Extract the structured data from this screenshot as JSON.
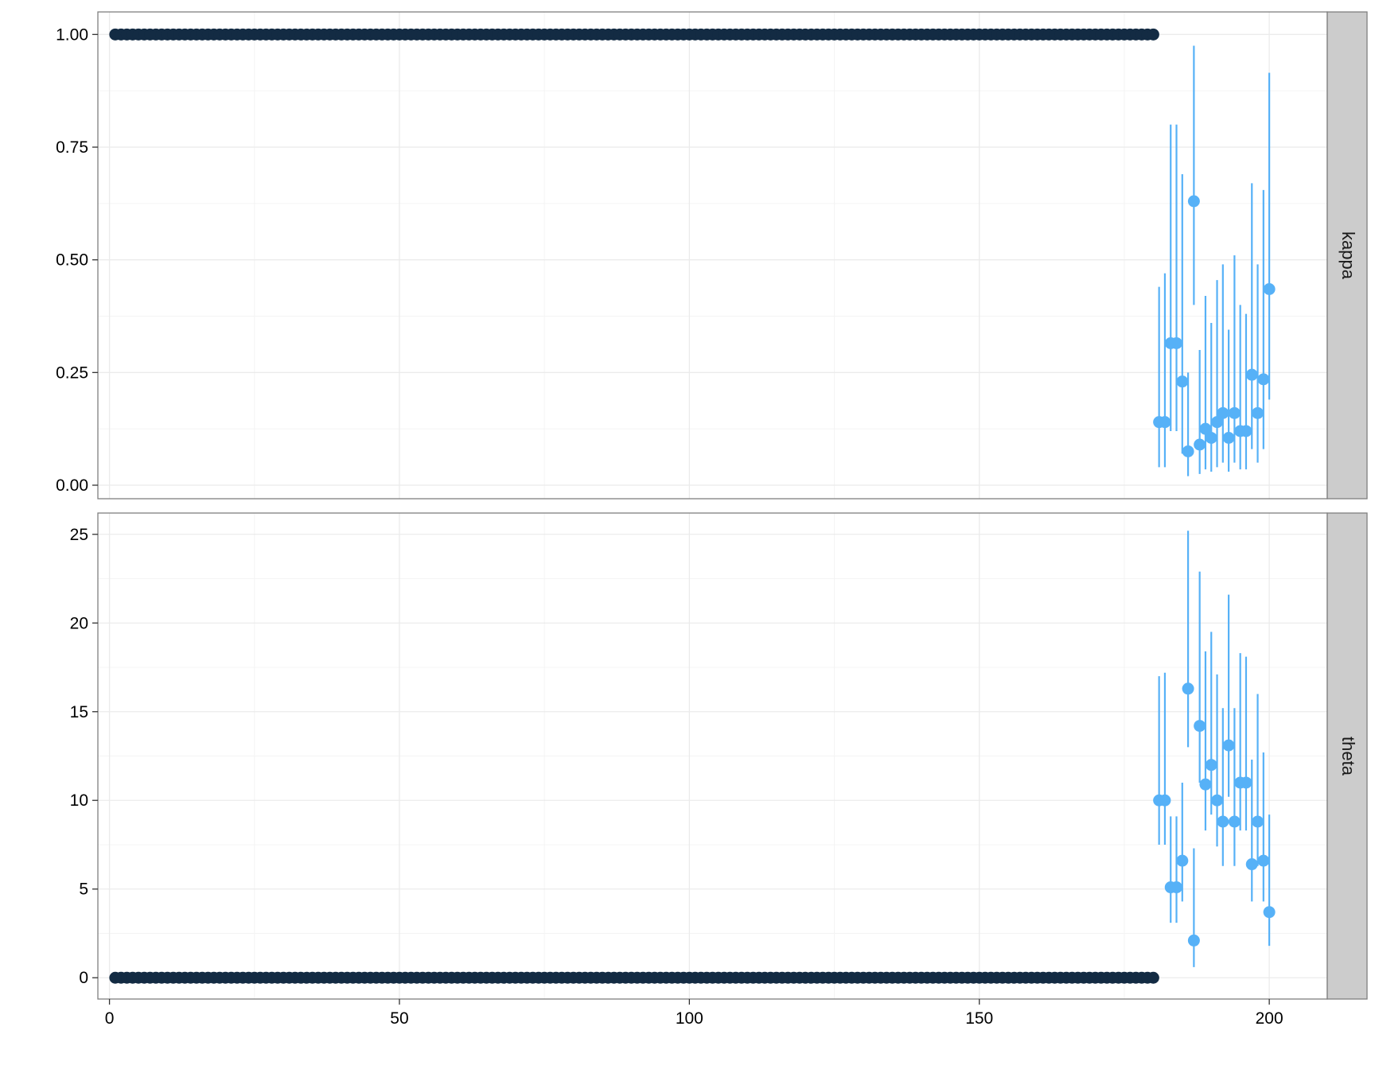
{
  "chart_data": {
    "type": "scatter",
    "title": "",
    "xlabel": "",
    "ylabel": "",
    "grid": true,
    "legend": "none",
    "x_axis": {
      "range": [
        -2,
        210
      ],
      "ticks": [
        0,
        50,
        100,
        150,
        200
      ],
      "tick_labels": [
        "0",
        "50",
        "100",
        "150",
        "200"
      ]
    },
    "colors": {
      "fixed_points": "#132B43",
      "estimated_points": "#56B1F7",
      "strip_fill": "#CCCCCC",
      "grid": "#EBEBEB",
      "panel_border": "#7F7F7F"
    },
    "panels": [
      {
        "strip_label": "kappa",
        "y_range": [
          -0.03,
          1.05
        ],
        "y_ticks": [
          0,
          0.25,
          0.5,
          0.75,
          1.0
        ],
        "y_tick_labels": [
          "0.00",
          "0.25",
          "0.50",
          "0.75",
          "1.00"
        ],
        "fixed_series": {
          "x_start": 1,
          "x_end": 180,
          "value": 1.0
        },
        "estimated_series": [
          {
            "x": 181,
            "y": 0.14,
            "lo": 0.04,
            "hi": 0.44
          },
          {
            "x": 182,
            "y": 0.14,
            "lo": 0.04,
            "hi": 0.47
          },
          {
            "x": 183,
            "y": 0.315,
            "lo": 0.12,
            "hi": 0.8
          },
          {
            "x": 184,
            "y": 0.315,
            "lo": 0.12,
            "hi": 0.8
          },
          {
            "x": 185,
            "y": 0.23,
            "lo": 0.07,
            "hi": 0.69
          },
          {
            "x": 186,
            "y": 0.075,
            "lo": 0.02,
            "hi": 0.25
          },
          {
            "x": 187,
            "y": 0.63,
            "lo": 0.4,
            "hi": 0.975
          },
          {
            "x": 188,
            "y": 0.09,
            "lo": 0.025,
            "hi": 0.3
          },
          {
            "x": 189,
            "y": 0.125,
            "lo": 0.035,
            "hi": 0.42
          },
          {
            "x": 190,
            "y": 0.105,
            "lo": 0.03,
            "hi": 0.36
          },
          {
            "x": 191,
            "y": 0.14,
            "lo": 0.04,
            "hi": 0.455
          },
          {
            "x": 192,
            "y": 0.16,
            "lo": 0.05,
            "hi": 0.49
          },
          {
            "x": 193,
            "y": 0.105,
            "lo": 0.03,
            "hi": 0.345
          },
          {
            "x": 194,
            "y": 0.16,
            "lo": 0.05,
            "hi": 0.51
          },
          {
            "x": 195,
            "y": 0.12,
            "lo": 0.035,
            "hi": 0.4
          },
          {
            "x": 196,
            "y": 0.12,
            "lo": 0.035,
            "hi": 0.38
          },
          {
            "x": 197,
            "y": 0.245,
            "lo": 0.08,
            "hi": 0.67
          },
          {
            "x": 198,
            "y": 0.16,
            "lo": 0.05,
            "hi": 0.49
          },
          {
            "x": 199,
            "y": 0.235,
            "lo": 0.08,
            "hi": 0.655
          },
          {
            "x": 200,
            "y": 0.435,
            "lo": 0.19,
            "hi": 0.915
          }
        ]
      },
      {
        "strip_label": "theta",
        "y_range": [
          -1.2,
          26.2
        ],
        "y_ticks": [
          0,
          5,
          10,
          15,
          20,
          25
        ],
        "y_tick_labels": [
          "0",
          "5",
          "10",
          "15",
          "20",
          "25"
        ],
        "fixed_series": {
          "x_start": 1,
          "x_end": 180,
          "value": 0
        },
        "estimated_series": [
          {
            "x": 181,
            "y": 10.0,
            "lo": 7.5,
            "hi": 17.0
          },
          {
            "x": 182,
            "y": 10.0,
            "lo": 7.5,
            "hi": 17.2
          },
          {
            "x": 183,
            "y": 5.1,
            "lo": 3.1,
            "hi": 9.1
          },
          {
            "x": 184,
            "y": 5.1,
            "lo": 3.1,
            "hi": 9.1
          },
          {
            "x": 185,
            "y": 6.6,
            "lo": 4.3,
            "hi": 11.0
          },
          {
            "x": 186,
            "y": 16.3,
            "lo": 13.0,
            "hi": 25.2
          },
          {
            "x": 187,
            "y": 2.1,
            "lo": 0.6,
            "hi": 7.3
          },
          {
            "x": 188,
            "y": 14.2,
            "lo": 11.0,
            "hi": 22.9
          },
          {
            "x": 189,
            "y": 10.9,
            "lo": 8.3,
            "hi": 18.4
          },
          {
            "x": 190,
            "y": 12.0,
            "lo": 9.2,
            "hi": 19.5
          },
          {
            "x": 191,
            "y": 10.0,
            "lo": 7.4,
            "hi": 17.1
          },
          {
            "x": 192,
            "y": 8.8,
            "lo": 6.3,
            "hi": 15.2
          },
          {
            "x": 193,
            "y": 13.1,
            "lo": 10.2,
            "hi": 21.6
          },
          {
            "x": 194,
            "y": 8.8,
            "lo": 6.3,
            "hi": 15.2
          },
          {
            "x": 195,
            "y": 11.0,
            "lo": 8.3,
            "hi": 18.3
          },
          {
            "x": 196,
            "y": 11.0,
            "lo": 8.3,
            "hi": 18.1
          },
          {
            "x": 197,
            "y": 6.4,
            "lo": 4.3,
            "hi": 12.3
          },
          {
            "x": 198,
            "y": 8.8,
            "lo": 6.3,
            "hi": 16.0
          },
          {
            "x": 199,
            "y": 6.6,
            "lo": 4.3,
            "hi": 12.7
          },
          {
            "x": 200,
            "y": 3.7,
            "lo": 1.8,
            "hi": 9.2
          }
        ]
      }
    ]
  }
}
